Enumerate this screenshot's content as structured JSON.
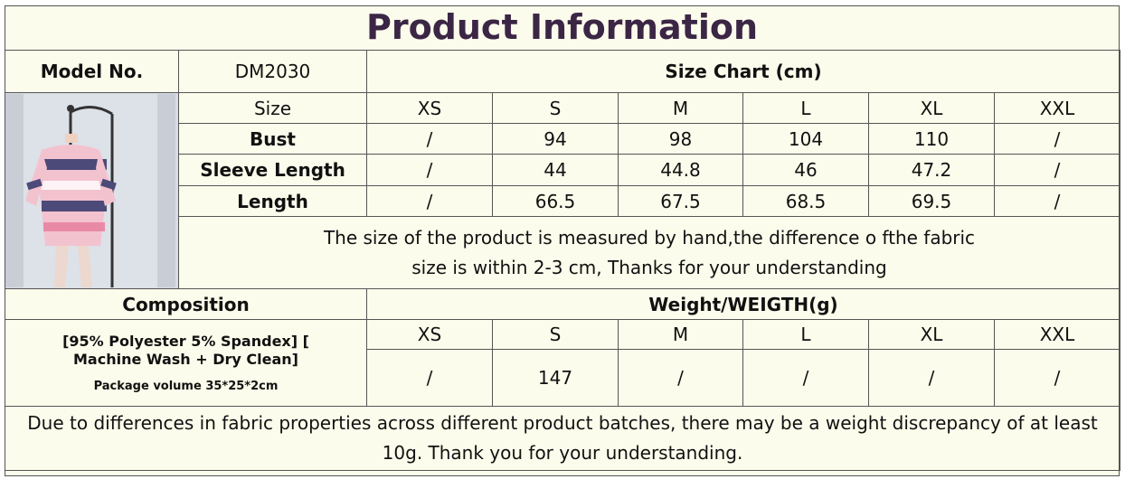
{
  "title": "Product Information",
  "model": {
    "label": "Model No.",
    "value": "DM2030"
  },
  "size_chart": {
    "heading": "Size Chart (cm)",
    "size_label": "Size",
    "sizes": [
      "XS",
      "S",
      "M",
      "L",
      "XL",
      "XXL"
    ],
    "rows": [
      {
        "label": "Bust",
        "values": [
          "/",
          "94",
          "98",
          "104",
          "110",
          "/"
        ]
      },
      {
        "label": "Sleeve Length",
        "values": [
          "/",
          "44",
          "44.8",
          "46",
          "47.2",
          "/"
        ]
      },
      {
        "label": "Length",
        "values": [
          "/",
          "66.5",
          "67.5",
          "68.5",
          "69.5",
          "/"
        ]
      }
    ],
    "note_line1": "The size of the product is measured by hand,the difference o fthe fabric",
    "note_line2": "size is within 2-3 cm, Thanks for your understanding"
  },
  "composition": {
    "heading": "Composition",
    "text": "[95% Polyester 5% Spandex] [ Machine Wash + Dry Clean]",
    "package": "Package volume 35*25*2cm"
  },
  "weight": {
    "heading": "Weight/WEIGTH(g)",
    "sizes": [
      "XS",
      "S",
      "M",
      "L",
      "XL",
      "XXL"
    ],
    "values": [
      "/",
      "147",
      "/",
      "/",
      "/",
      "/"
    ]
  },
  "footer": {
    "line1": "Due to differences in fabric properties across different product batches, there may be a weight discrepancy of at least",
    "line2": "10g. Thank you for your understanding."
  },
  "colors": {
    "title": "#3b2645",
    "background": "#fcfcec",
    "border": "#555555"
  }
}
